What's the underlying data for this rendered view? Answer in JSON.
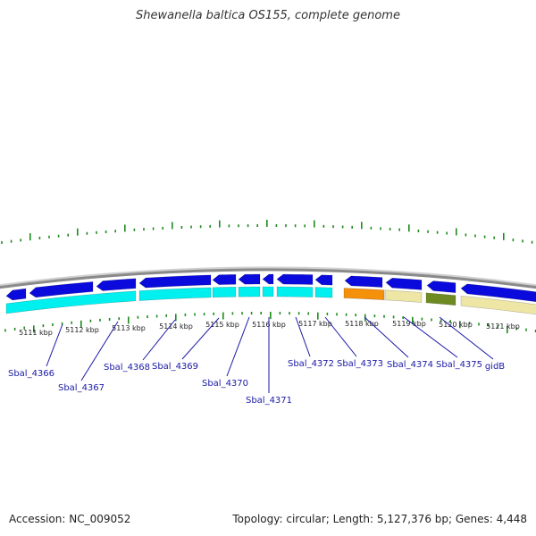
{
  "title": "Shewanella baltica OS155, complete genome",
  "footer": {
    "accession": "Accession: NC_009052",
    "topology": "Topology: circular; Length: 5,127,376 bp; Genes: 4,448"
  },
  "colors": {
    "backbone": "#8a8a8a",
    "forward_cds": "#0a0adc",
    "reverse_cds": "#00f0f0",
    "orange": "#f5900a",
    "khaki": "#eee6a4",
    "olive": "#6e8a22",
    "tick": "#1d8a1d",
    "label": "#1a1aa6"
  },
  "ticks": [
    "5111 kbp",
    "5112 kbp",
    "5113 kbp",
    "5114 kbp",
    "5115 kbp",
    "5116 kbp",
    "5117 kbp",
    "5118 kbp",
    "5119 kbp",
    "5120 kbp",
    "5121 kbp"
  ],
  "gene_labels": [
    "Sbal_4366",
    "Sbal_4367",
    "Sbal_4368",
    "Sbal_4369",
    "Sbal_4370",
    "Sbal_4371",
    "Sbal_4372",
    "Sbal_4373",
    "Sbal_4374",
    "Sbal_4375",
    "gidB"
  ]
}
